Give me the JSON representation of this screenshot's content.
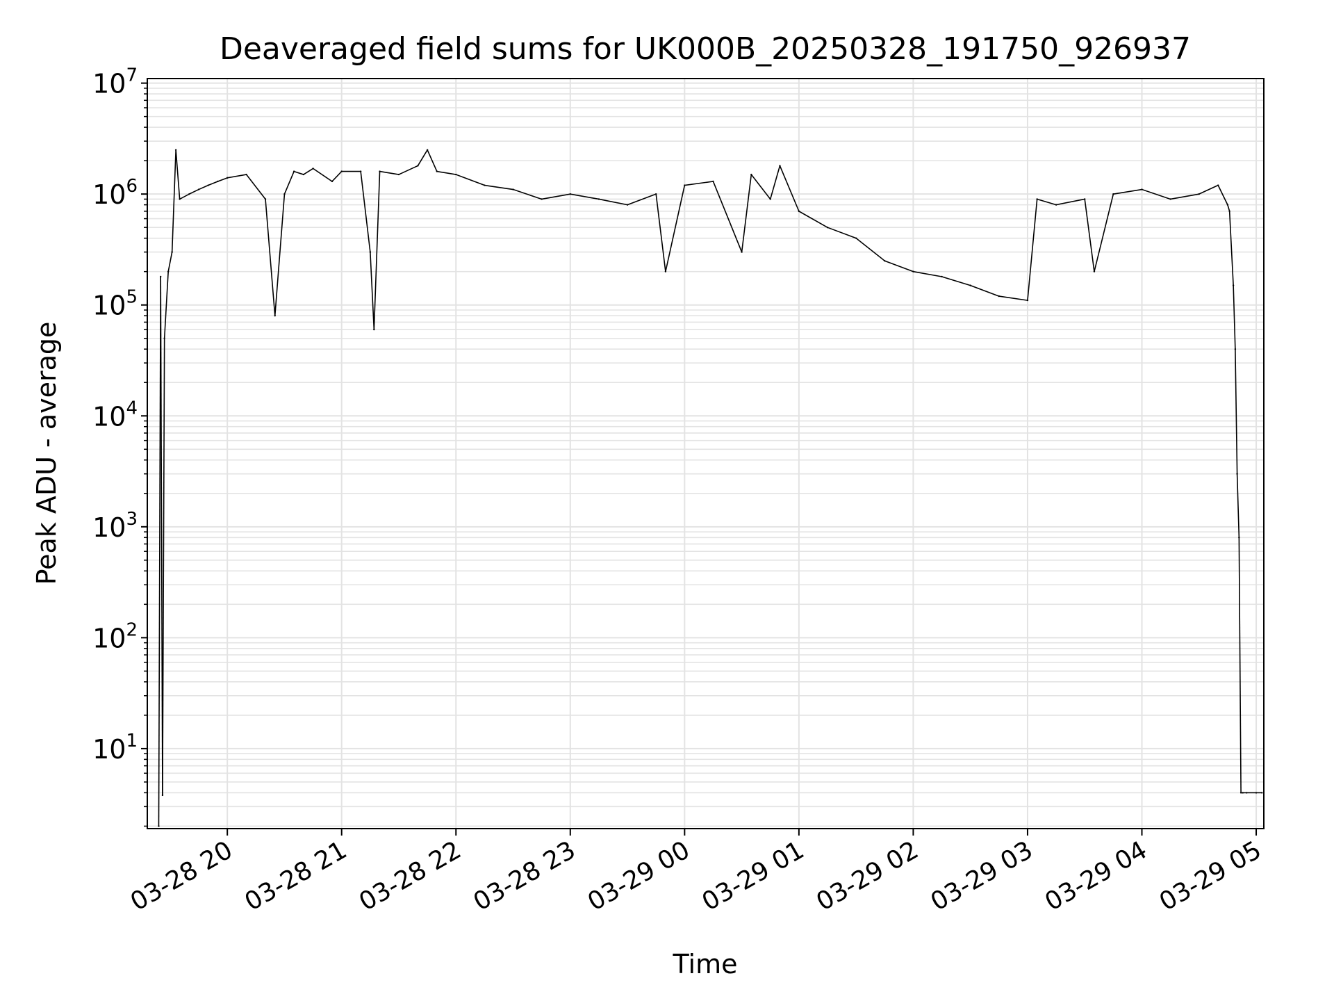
{
  "chart_data": {
    "type": "line",
    "title": "Deaveraged field sums for UK000B_20250328_191750_926937",
    "xlabel": "Time",
    "ylabel": "Peak ADU - average",
    "y_scale": "log",
    "ylim": [
      1.9,
      11000000
    ],
    "xlim": [
      "2025-03-28 19:18",
      "2025-03-29 05:04"
    ],
    "grid": true,
    "line_color": "#000000",
    "grid_color": "#e3e3e3",
    "x_ticks": [
      {
        "time": "2025-03-28 20:00",
        "label": "03-28 20"
      },
      {
        "time": "2025-03-28 21:00",
        "label": "03-28 21"
      },
      {
        "time": "2025-03-28 22:00",
        "label": "03-28 22"
      },
      {
        "time": "2025-03-28 23:00",
        "label": "03-28 23"
      },
      {
        "time": "2025-03-29 00:00",
        "label": "03-29 00"
      },
      {
        "time": "2025-03-29 01:00",
        "label": "03-29 01"
      },
      {
        "time": "2025-03-29 02:00",
        "label": "03-29 02"
      },
      {
        "time": "2025-03-29 03:00",
        "label": "03-29 03"
      },
      {
        "time": "2025-03-29 04:00",
        "label": "03-29 04"
      },
      {
        "time": "2025-03-29 05:00",
        "label": "03-29 05"
      }
    ],
    "y_ticks": [
      {
        "value": 10,
        "base": "10",
        "exp": "1"
      },
      {
        "value": 100,
        "base": "10",
        "exp": "2"
      },
      {
        "value": 1000,
        "base": "10",
        "exp": "3"
      },
      {
        "value": 10000,
        "base": "10",
        "exp": "4"
      },
      {
        "value": 100000,
        "base": "10",
        "exp": "5"
      },
      {
        "value": 1000000,
        "base": "10",
        "exp": "6"
      },
      {
        "value": 10000000,
        "base": "10",
        "exp": "7"
      }
    ],
    "series": [
      {
        "x": [
          "2025-03-28 19:24",
          "2025-03-28 19:25",
          "2025-03-28 19:26",
          "2025-03-28 19:27",
          "2025-03-28 19:29",
          "2025-03-28 19:31",
          "2025-03-28 19:33",
          "2025-03-28 19:35",
          "2025-03-28 19:40",
          "2025-03-28 19:45",
          "2025-03-28 19:50",
          "2025-03-28 19:55",
          "2025-03-28 20:00",
          "2025-03-28 20:10",
          "2025-03-28 20:20",
          "2025-03-28 20:25",
          "2025-03-28 20:30",
          "2025-03-28 20:35",
          "2025-03-28 20:40",
          "2025-03-28 20:45",
          "2025-03-28 20:55",
          "2025-03-28 21:00",
          "2025-03-28 21:10",
          "2025-03-28 21:15",
          "2025-03-28 21:17",
          "2025-03-28 21:20",
          "2025-03-28 21:30",
          "2025-03-28 21:40",
          "2025-03-28 21:45",
          "2025-03-28 21:50",
          "2025-03-28 22:00",
          "2025-03-28 22:15",
          "2025-03-28 22:30",
          "2025-03-28 22:45",
          "2025-03-28 23:00",
          "2025-03-28 23:15",
          "2025-03-28 23:30",
          "2025-03-28 23:45",
          "2025-03-28 23:50",
          "2025-03-29 00:00",
          "2025-03-29 00:15",
          "2025-03-29 00:30",
          "2025-03-29 00:35",
          "2025-03-29 00:45",
          "2025-03-29 00:50",
          "2025-03-29 01:00",
          "2025-03-29 01:15",
          "2025-03-29 01:30",
          "2025-03-29 01:45",
          "2025-03-29 02:00",
          "2025-03-29 02:15",
          "2025-03-29 02:30",
          "2025-03-29 02:45",
          "2025-03-29 03:00",
          "2025-03-29 03:05",
          "2025-03-29 03:15",
          "2025-03-29 03:30",
          "2025-03-29 03:35",
          "2025-03-29 03:45",
          "2025-03-29 04:00",
          "2025-03-29 04:15",
          "2025-03-29 04:30",
          "2025-03-29 04:40",
          "2025-03-29 04:45",
          "2025-03-29 04:46",
          "2025-03-29 04:48",
          "2025-03-29 04:49",
          "2025-03-29 04:50",
          "2025-03-29 04:51",
          "2025-03-29 04:52",
          "2025-03-29 04:53",
          "2025-03-29 04:55",
          "2025-03-29 05:00",
          "2025-03-29 05:03"
        ],
        "y": [
          2,
          180000,
          3.8,
          50000,
          200000,
          300000,
          2500000,
          900000,
          1000000,
          1100000,
          1200000,
          1300000,
          1400000,
          1500000,
          900000,
          80000,
          1000000,
          1600000,
          1500000,
          1700000,
          1300000,
          1600000,
          1600000,
          300000,
          60000,
          1600000,
          1500000,
          1800000,
          2500000,
          1600000,
          1500000,
          1200000,
          1100000,
          900000,
          1000000,
          900000,
          800000,
          1000000,
          200000,
          1200000,
          1300000,
          300000,
          1500000,
          900000,
          1800000,
          700000,
          500000,
          400000,
          250000,
          200000,
          180000,
          150000,
          120000,
          110000,
          900000,
          800000,
          900000,
          200000,
          1000000,
          1100000,
          900000,
          1000000,
          1200000,
          800000,
          700000,
          150000,
          40000,
          3000,
          800,
          4,
          4,
          4,
          4,
          4
        ]
      }
    ]
  }
}
